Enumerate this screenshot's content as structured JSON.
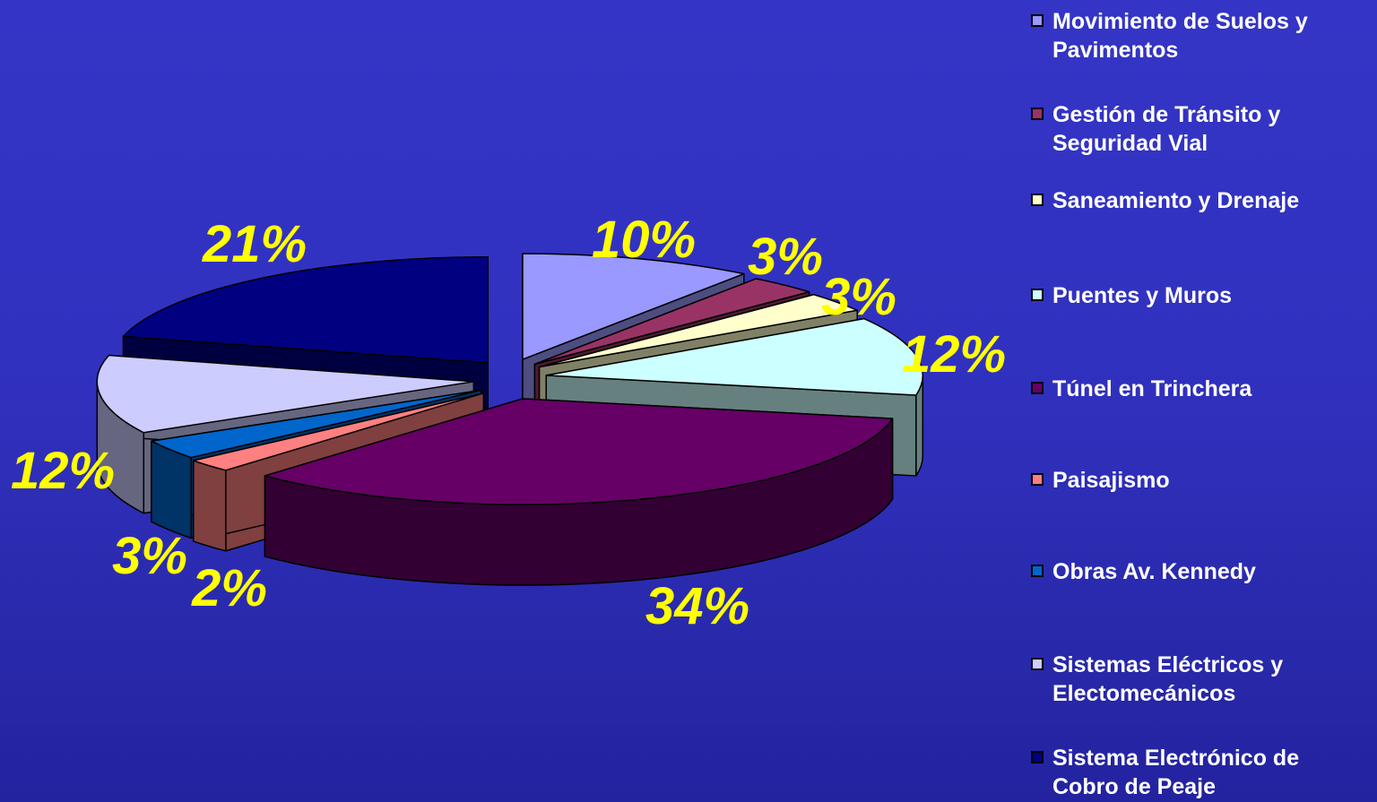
{
  "chart_data": {
    "type": "pie",
    "style": "3d-exploded",
    "legend_position": "right",
    "slices": [
      {
        "name": "Movimiento de Suelos y Pavimentos",
        "value": 10,
        "label": "10%",
        "color": "#9999ff"
      },
      {
        "name": "Gestión de Tránsito y Seguridad Vial",
        "value": 3,
        "label": "3%",
        "color": "#993366"
      },
      {
        "name": "Saneamiento y Drenaje",
        "value": 3,
        "label": "3%",
        "color": "#ffffcc"
      },
      {
        "name": "Puentes y Muros",
        "value": 12,
        "label": "12%",
        "color": "#ccffff"
      },
      {
        "name": "Túnel en Trinchera",
        "value": 34,
        "label": "34%",
        "color": "#660066"
      },
      {
        "name": "Paisajismo",
        "value": 2,
        "label": "2%",
        "color": "#ff8080"
      },
      {
        "name": "Obras Av. Kennedy",
        "value": 3,
        "label": "3%",
        "color": "#0066cc"
      },
      {
        "name": "Sistemas Eléctricos y Electomecánicos",
        "value": 12,
        "label": "12%",
        "color": "#ccccff"
      },
      {
        "name": "Sistema Electrónico de Cobro de Peaje",
        "value": 21,
        "label": "21%",
        "color": "#000080"
      }
    ]
  },
  "legend": {
    "items": [
      {
        "label": "Movimiento de Suelos y\nPavimentos",
        "color": "#9999ff"
      },
      {
        "label": "Gestión de Tránsito y\nSeguridad Vial",
        "color": "#993366"
      },
      {
        "label": "Saneamiento y Drenaje",
        "color": "#ffffcc"
      },
      {
        "label": "Puentes y Muros",
        "color": "#ccffff"
      },
      {
        "label": "Túnel en Trinchera",
        "color": "#660066"
      },
      {
        "label": "Paisajismo",
        "color": "#ff8080"
      },
      {
        "label": "Obras Av. Kennedy",
        "color": "#0066cc"
      },
      {
        "label": "Sistemas Eléctricos y\nElectomecánicos",
        "color": "#ccccff"
      },
      {
        "label": "Sistema Electrónico de\nCobro de Peaje",
        "color": "#000080"
      }
    ]
  },
  "colors": {
    "background": "#3232c2",
    "data_label": "#ffff00",
    "legend_text": "#ffffff"
  }
}
